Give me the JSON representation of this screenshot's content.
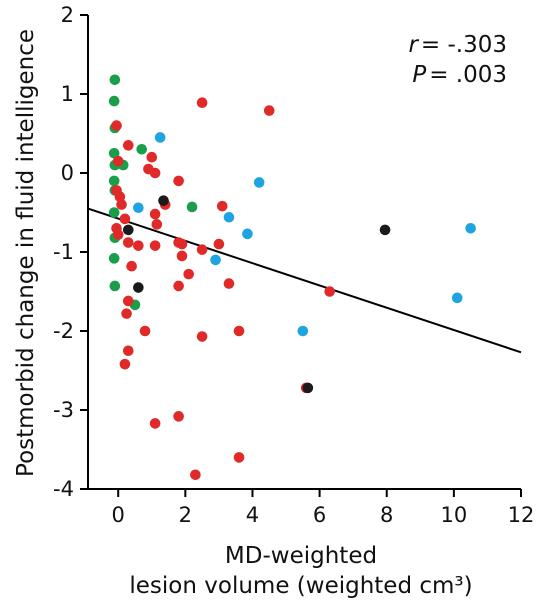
{
  "chart_data": {
    "type": "scatter",
    "title": "",
    "ylabel": "Postmorbid change in fluid intelligence",
    "xlabel_lines": [
      "MD-weighted",
      "lesion volume (weighted cm³)"
    ],
    "xlim": [
      -0.9,
      12
    ],
    "ylim": [
      -4,
      2
    ],
    "x_ticks": [
      0,
      2,
      4,
      6,
      8,
      10,
      12
    ],
    "y_ticks": [
      -4,
      -3,
      -2,
      -1,
      0,
      1,
      2
    ],
    "annotation": {
      "r_label": "r",
      "r_value": "= -.303",
      "p_label": "P",
      "p_value": "=  .003"
    },
    "regression_line": {
      "x": [
        -0.9,
        12
      ],
      "y": [
        -0.45,
        -2.27
      ]
    },
    "colors": {
      "green": "#1a9e4a",
      "red": "#e02a2a",
      "blue": "#1ea5e0",
      "black": "#1a1a1a"
    },
    "series": [
      {
        "color_key": "green",
        "points": [
          [
            -0.1,
            1.18
          ],
          [
            -0.12,
            0.91
          ],
          [
            -0.1,
            0.57
          ],
          [
            -0.12,
            0.25
          ],
          [
            -0.1,
            0.1
          ],
          [
            0.0,
            0.12
          ],
          [
            0.15,
            0.1
          ],
          [
            -0.12,
            -0.1
          ],
          [
            -0.1,
            -0.22
          ],
          [
            -0.12,
            -0.5
          ],
          [
            -0.1,
            -0.82
          ],
          [
            -0.12,
            -1.08
          ],
          [
            -0.1,
            -1.43
          ],
          [
            0.5,
            -1.67
          ],
          [
            0.7,
            0.3
          ],
          [
            2.2,
            -0.43
          ]
        ]
      },
      {
        "color_key": "red",
        "points": [
          [
            -0.05,
            0.6
          ],
          [
            0.3,
            0.35
          ],
          [
            0.0,
            0.15
          ],
          [
            1.0,
            0.2
          ],
          [
            0.9,
            0.05
          ],
          [
            1.1,
            0.0
          ],
          [
            -0.05,
            -0.22
          ],
          [
            0.05,
            -0.3
          ],
          [
            0.1,
            -0.4
          ],
          [
            0.2,
            -0.58
          ],
          [
            -0.05,
            -0.7
          ],
          [
            0.0,
            -0.78
          ],
          [
            0.3,
            -0.88
          ],
          [
            0.6,
            -0.92
          ],
          [
            1.1,
            -0.52
          ],
          [
            1.15,
            -0.65
          ],
          [
            1.8,
            -0.1
          ],
          [
            1.4,
            -0.4
          ],
          [
            1.8,
            -0.88
          ],
          [
            1.9,
            -0.9
          ],
          [
            1.1,
            -0.92
          ],
          [
            2.5,
            -0.97
          ],
          [
            3.0,
            -0.9
          ],
          [
            1.9,
            -1.05
          ],
          [
            0.4,
            -1.18
          ],
          [
            2.1,
            -1.28
          ],
          [
            1.8,
            -1.43
          ],
          [
            0.3,
            -1.62
          ],
          [
            0.25,
            -1.78
          ],
          [
            0.8,
            -2.0
          ],
          [
            2.5,
            -2.07
          ],
          [
            3.6,
            -2.0
          ],
          [
            0.3,
            -2.25
          ],
          [
            0.2,
            -2.42
          ],
          [
            3.3,
            -1.4
          ],
          [
            3.1,
            -0.42
          ],
          [
            2.5,
            0.89
          ],
          [
            4.5,
            0.79
          ],
          [
            6.3,
            -1.5
          ],
          [
            5.6,
            -2.72
          ],
          [
            1.8,
            -3.08
          ],
          [
            1.1,
            -3.17
          ],
          [
            3.6,
            -3.6
          ],
          [
            2.3,
            -3.82
          ]
        ]
      },
      {
        "color_key": "blue",
        "points": [
          [
            1.25,
            0.45
          ],
          [
            0.6,
            -0.44
          ],
          [
            3.3,
            -0.56
          ],
          [
            3.85,
            -0.77
          ],
          [
            4.2,
            -0.12
          ],
          [
            2.9,
            -1.1
          ],
          [
            5.5,
            -2.0
          ],
          [
            10.1,
            -1.58
          ],
          [
            10.5,
            -0.7
          ]
        ]
      },
      {
        "color_key": "black",
        "points": [
          [
            0.3,
            -0.72
          ],
          [
            1.35,
            -0.35
          ],
          [
            0.6,
            -1.45
          ],
          [
            7.95,
            -0.72
          ],
          [
            5.65,
            -2.72
          ]
        ]
      }
    ]
  }
}
